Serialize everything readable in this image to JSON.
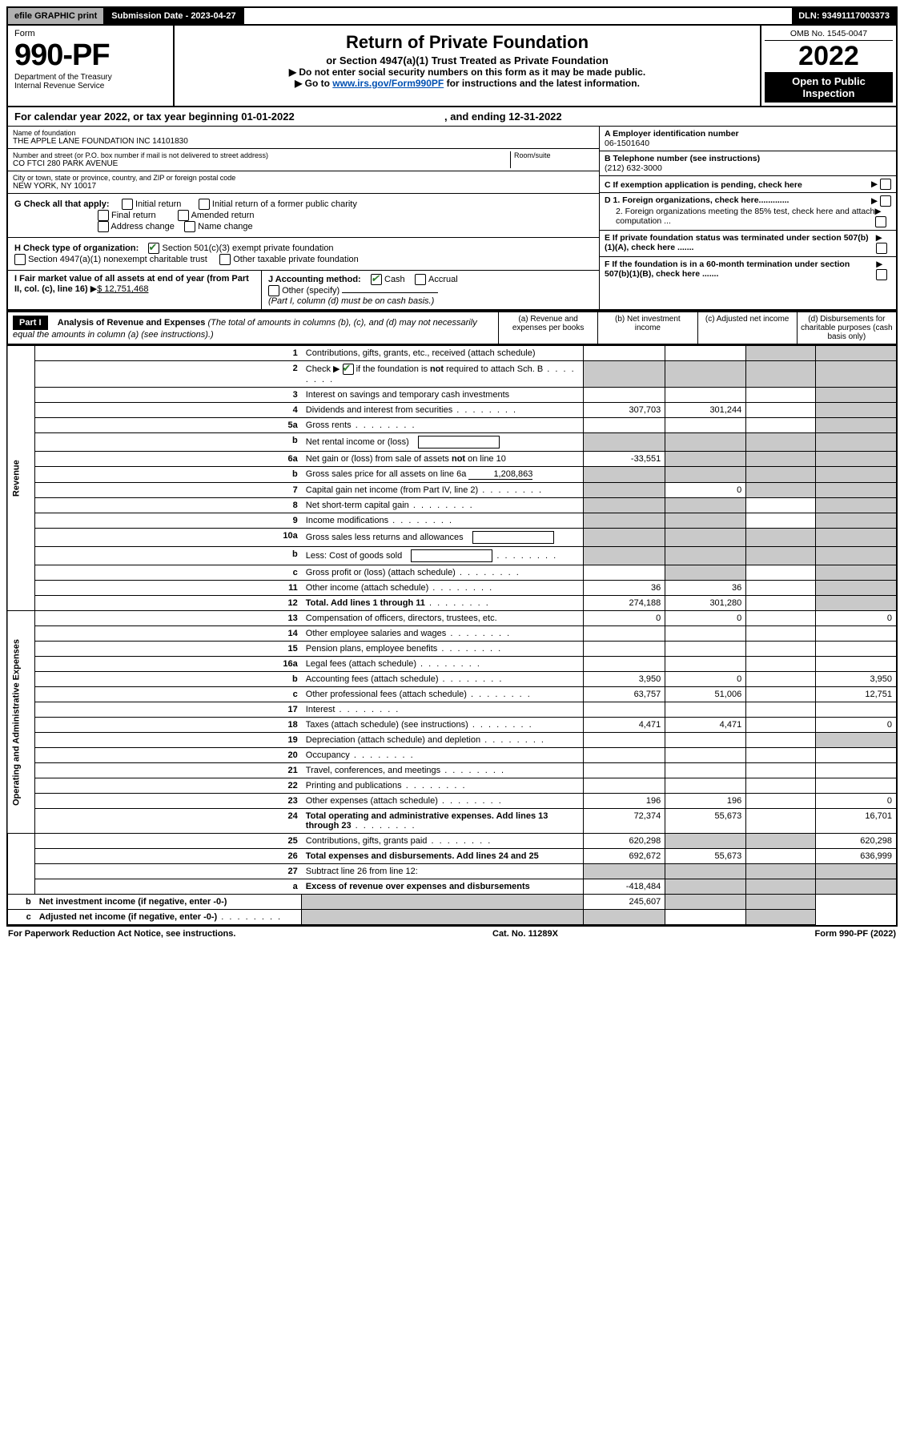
{
  "topbar": {
    "efile": "efile GRAPHIC print",
    "submission": "Submission Date - 2023-04-27",
    "dln": "DLN: 93491117003373"
  },
  "header": {
    "form_label": "Form",
    "form_num": "990-PF",
    "dept": "Department of the Treasury",
    "irs": "Internal Revenue Service",
    "title": "Return of Private Foundation",
    "subtitle": "or Section 4947(a)(1) Trust Treated as Private Foundation",
    "instr1": "▶ Do not enter social security numbers on this form as it may be made public.",
    "instr2_pre": "▶ Go to ",
    "instr2_link": "www.irs.gov/Form990PF",
    "instr2_post": " for instructions and the latest information.",
    "omb": "OMB No. 1545-0047",
    "year": "2022",
    "open": "Open to Public Inspection"
  },
  "cal_year": {
    "pre": "For calendar year 2022, or tax year beginning 01-01-2022",
    "mid": ", and ending 12-31-2022"
  },
  "info": {
    "name_label": "Name of foundation",
    "name": "THE APPLE LANE FOUNDATION INC 14101830",
    "addr_label": "Number and street (or P.O. box number if mail is not delivered to street address)",
    "room_label": "Room/suite",
    "addr": "CO FTCI 280 PARK AVENUE",
    "city_label": "City or town, state or province, country, and ZIP or foreign postal code",
    "city": "NEW YORK, NY  10017",
    "a_label": "A Employer identification number",
    "a_val": "06-1501640",
    "b_label": "B Telephone number (see instructions)",
    "b_val": "(212) 632-3000",
    "c_label": "C If exemption application is pending, check here",
    "d1": "D 1. Foreign organizations, check here.............",
    "d2": "2. Foreign organizations meeting the 85% test, check here and attach computation ...",
    "e_label": "E  If private foundation status was terminated under section 507(b)(1)(A), check here .......",
    "f_label": "F  If the foundation is in a 60-month termination under section 507(b)(1)(B), check here ......."
  },
  "g": {
    "label": "G Check all that apply:",
    "initial": "Initial return",
    "final": "Final return",
    "addr": "Address change",
    "initial_former": "Initial return of a former public charity",
    "amended": "Amended return",
    "name": "Name change"
  },
  "h": {
    "label": "H Check type of organization:",
    "c3": "Section 501(c)(3) exempt private foundation",
    "4947": "Section 4947(a)(1) nonexempt charitable trust",
    "other_tax": "Other taxable private foundation"
  },
  "i": {
    "label": "I Fair market value of all assets at end of year (from Part II, col. (c), line 16)",
    "val": "$  12,751,468",
    "j_label": "J Accounting method:",
    "cash": "Cash",
    "accrual": "Accrual",
    "other": "Other (specify)",
    "note": "(Part I, column (d) must be on cash basis.)"
  },
  "part1": {
    "label": "Part I",
    "title": "Analysis of Revenue and Expenses",
    "title_note": " (The total of amounts in columns (b), (c), and (d) may not necessarily equal the amounts in column (a) (see instructions).)",
    "col_a": "(a)   Revenue and expenses per books",
    "col_b": "(b)   Net investment income",
    "col_c": "(c)   Adjusted net income",
    "col_d": "(d)  Disbursements for charitable purposes (cash basis only)"
  },
  "sections": {
    "revenue": "Revenue",
    "opex": "Operating and Administrative Expenses"
  },
  "rows": [
    {
      "n": "1",
      "desc": "Contributions, gifts, grants, etc., received (attach schedule)",
      "a": "",
      "b": "",
      "c": "s",
      "d": "s"
    },
    {
      "n": "2",
      "desc": "Check ▶ ☑ if the foundation is not required to attach Sch. B",
      "dots": true,
      "a": "s",
      "b": "s",
      "c": "s",
      "d": "s"
    },
    {
      "n": "3",
      "desc": "Interest on savings and temporary cash investments",
      "a": "",
      "b": "",
      "c": "",
      "d": "s"
    },
    {
      "n": "4",
      "desc": "Dividends and interest from securities",
      "dots": true,
      "a": "307,703",
      "b": "301,244",
      "c": "",
      "d": "s"
    },
    {
      "n": "5a",
      "desc": "Gross rents",
      "dots": true,
      "a": "",
      "b": "",
      "c": "",
      "d": "s"
    },
    {
      "n": "b",
      "desc": "Net rental income or (loss)",
      "blank": true,
      "a": "s",
      "b": "s",
      "c": "s",
      "d": "s"
    },
    {
      "n": "6a",
      "desc": "Net gain or (loss) from sale of assets not on line 10",
      "a": "-33,551",
      "b": "s",
      "c": "s",
      "d": "s"
    },
    {
      "n": "b",
      "desc": "Gross sales price for all assets on line 6a",
      "inline_val": "1,208,863",
      "a": "s",
      "b": "s",
      "c": "s",
      "d": "s"
    },
    {
      "n": "7",
      "desc": "Capital gain net income (from Part IV, line 2)",
      "dots": true,
      "a": "s",
      "b": "0",
      "c": "s",
      "d": "s"
    },
    {
      "n": "8",
      "desc": "Net short-term capital gain",
      "dots": true,
      "a": "s",
      "b": "s",
      "c": "",
      "d": "s"
    },
    {
      "n": "9",
      "desc": "Income modifications",
      "dots": true,
      "a": "s",
      "b": "s",
      "c": "",
      "d": "s"
    },
    {
      "n": "10a",
      "desc": "Gross sales less returns and allowances",
      "blank": true,
      "a": "s",
      "b": "s",
      "c": "s",
      "d": "s"
    },
    {
      "n": "b",
      "desc": "Less: Cost of goods sold",
      "dots": true,
      "blank": true,
      "a": "s",
      "b": "s",
      "c": "s",
      "d": "s"
    },
    {
      "n": "c",
      "desc": "Gross profit or (loss) (attach schedule)",
      "dots": true,
      "a": "",
      "b": "s",
      "c": "",
      "d": "s"
    },
    {
      "n": "11",
      "desc": "Other income (attach schedule)",
      "dots": true,
      "a": "36",
      "b": "36",
      "c": "",
      "d": "s"
    },
    {
      "n": "12",
      "desc": "Total. Add lines 1 through 11",
      "dots": true,
      "bold": true,
      "a": "274,188",
      "b": "301,280",
      "c": "",
      "d": "s"
    },
    {
      "n": "13",
      "desc": "Compensation of officers, directors, trustees, etc.",
      "a": "0",
      "b": "0",
      "c": "",
      "d": "0",
      "sec": "opex"
    },
    {
      "n": "14",
      "desc": "Other employee salaries and wages",
      "dots": true,
      "a": "",
      "b": "",
      "c": "",
      "d": ""
    },
    {
      "n": "15",
      "desc": "Pension plans, employee benefits",
      "dots": true,
      "a": "",
      "b": "",
      "c": "",
      "d": ""
    },
    {
      "n": "16a",
      "desc": "Legal fees (attach schedule)",
      "dots": true,
      "a": "",
      "b": "",
      "c": "",
      "d": ""
    },
    {
      "n": "b",
      "desc": "Accounting fees (attach schedule)",
      "dots": true,
      "a": "3,950",
      "b": "0",
      "c": "",
      "d": "3,950"
    },
    {
      "n": "c",
      "desc": "Other professional fees (attach schedule)",
      "dots": true,
      "a": "63,757",
      "b": "51,006",
      "c": "",
      "d": "12,751"
    },
    {
      "n": "17",
      "desc": "Interest",
      "dots": true,
      "a": "",
      "b": "",
      "c": "",
      "d": ""
    },
    {
      "n": "18",
      "desc": "Taxes (attach schedule) (see instructions)",
      "dots": true,
      "a": "4,471",
      "b": "4,471",
      "c": "",
      "d": "0"
    },
    {
      "n": "19",
      "desc": "Depreciation (attach schedule) and depletion",
      "dots": true,
      "a": "",
      "b": "",
      "c": "",
      "d": "s"
    },
    {
      "n": "20",
      "desc": "Occupancy",
      "dots": true,
      "a": "",
      "b": "",
      "c": "",
      "d": ""
    },
    {
      "n": "21",
      "desc": "Travel, conferences, and meetings",
      "dots": true,
      "a": "",
      "b": "",
      "c": "",
      "d": ""
    },
    {
      "n": "22",
      "desc": "Printing and publications",
      "dots": true,
      "a": "",
      "b": "",
      "c": "",
      "d": ""
    },
    {
      "n": "23",
      "desc": "Other expenses (attach schedule)",
      "dots": true,
      "a": "196",
      "b": "196",
      "c": "",
      "d": "0"
    },
    {
      "n": "24",
      "desc": "Total operating and administrative expenses. Add lines 13 through 23",
      "dots": true,
      "bold": true,
      "a": "72,374",
      "b": "55,673",
      "c": "",
      "d": "16,701"
    },
    {
      "n": "25",
      "desc": "Contributions, gifts, grants paid",
      "dots": true,
      "a": "620,298",
      "b": "s",
      "c": "s",
      "d": "620,298"
    },
    {
      "n": "26",
      "desc": "Total expenses and disbursements. Add lines 24 and 25",
      "bold": true,
      "a": "692,672",
      "b": "55,673",
      "c": "",
      "d": "636,999"
    },
    {
      "n": "27",
      "desc": "Subtract line 26 from line 12:",
      "a": "s",
      "b": "s",
      "c": "s",
      "d": "s"
    },
    {
      "n": "a",
      "desc": "Excess of revenue over expenses and disbursements",
      "bold": true,
      "a": "-418,484",
      "b": "s",
      "c": "s",
      "d": "s"
    },
    {
      "n": "b",
      "desc": "Net investment income (if negative, enter -0-)",
      "bold": true,
      "a": "s",
      "b": "245,607",
      "c": "s",
      "d": "s"
    },
    {
      "n": "c",
      "desc": "Adjusted net income (if negative, enter -0-)",
      "dots": true,
      "bold": true,
      "a": "s",
      "b": "s",
      "c": "",
      "d": "s"
    }
  ],
  "footer": {
    "left": "For Paperwork Reduction Act Notice, see instructions.",
    "mid": "Cat. No. 11289X",
    "right": "Form 990-PF (2022)"
  },
  "colors": {
    "shade": "#c9c9c9",
    "link": "#0050b2",
    "check": "#2a7a2a"
  }
}
